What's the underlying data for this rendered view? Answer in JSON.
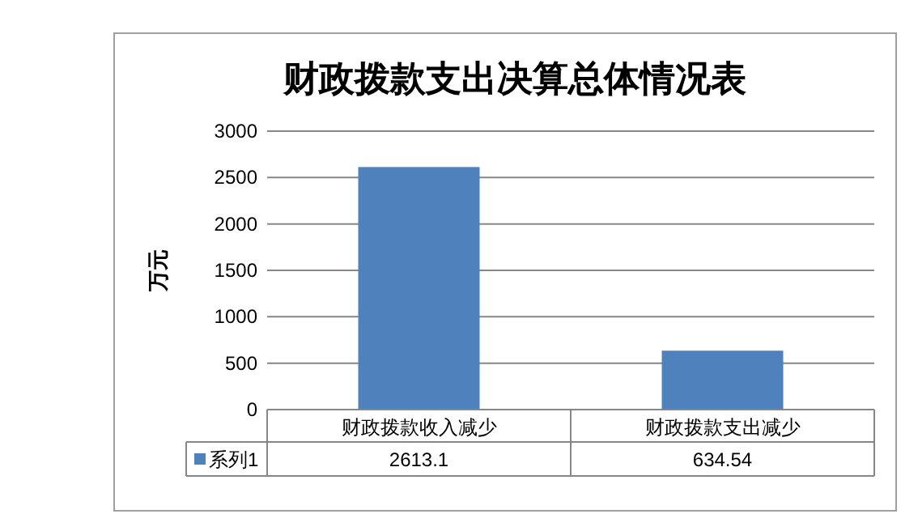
{
  "chart_data": {
    "type": "bar",
    "title": "财政拨款支出决算总体情况表",
    "ylabel": "万元",
    "categories": [
      "财政拨款收入减少",
      "财政拨款支出减少"
    ],
    "series": [
      {
        "name": "系列1",
        "color": "#4f81bd",
        "values": [
          2613.1,
          634.54
        ]
      }
    ],
    "value_labels": [
      "2613.1",
      "634.54"
    ],
    "ylim": [
      0,
      3000
    ],
    "yticks": [
      0,
      500,
      1000,
      1500,
      2000,
      2500,
      3000
    ],
    "grid": "y",
    "legend": "bottom",
    "data_labels": true
  }
}
